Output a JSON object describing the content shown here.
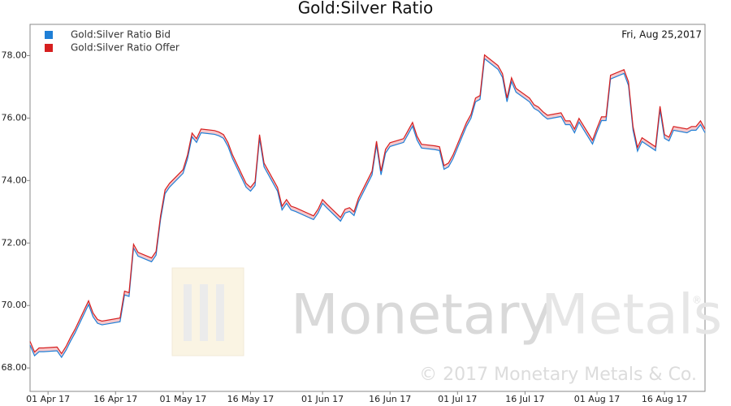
{
  "chart_data": {
    "type": "line",
    "title": "Gold:Silver Ratio",
    "annotation": "Fri, Aug 25,2017",
    "watermark": {
      "brand_1": "Monetary",
      "brand_2": "Metals",
      "registered": "®",
      "copyright": "© 2017 Monetary Metals & Co."
    },
    "x": [
      "2017-03-28",
      "2017-03-29",
      "2017-03-30",
      "2017-03-31",
      "2017-04-03",
      "2017-04-04",
      "2017-04-05",
      "2017-04-06",
      "2017-04-07",
      "2017-04-10",
      "2017-04-11",
      "2017-04-12",
      "2017-04-13",
      "2017-04-17",
      "2017-04-18",
      "2017-04-19",
      "2017-04-20",
      "2017-04-21",
      "2017-04-24",
      "2017-04-25",
      "2017-04-26",
      "2017-04-27",
      "2017-04-28",
      "2017-05-01",
      "2017-05-02",
      "2017-05-03",
      "2017-05-04",
      "2017-05-05",
      "2017-05-08",
      "2017-05-09",
      "2017-05-10",
      "2017-05-11",
      "2017-05-12",
      "2017-05-15",
      "2017-05-16",
      "2017-05-17",
      "2017-05-18",
      "2017-05-19",
      "2017-05-22",
      "2017-05-23",
      "2017-05-24",
      "2017-05-25",
      "2017-05-26",
      "2017-05-30",
      "2017-05-31",
      "2017-06-01",
      "2017-06-02",
      "2017-06-05",
      "2017-06-06",
      "2017-06-07",
      "2017-06-08",
      "2017-06-09",
      "2017-06-12",
      "2017-06-13",
      "2017-06-14",
      "2017-06-15",
      "2017-06-16",
      "2017-06-19",
      "2017-06-20",
      "2017-06-21",
      "2017-06-22",
      "2017-06-23",
      "2017-06-26",
      "2017-06-27",
      "2017-06-28",
      "2017-06-29",
      "2017-06-30",
      "2017-07-03",
      "2017-07-04",
      "2017-07-05",
      "2017-07-06",
      "2017-07-07",
      "2017-07-10",
      "2017-07-11",
      "2017-07-12",
      "2017-07-13",
      "2017-07-14",
      "2017-07-17",
      "2017-07-18",
      "2017-07-19",
      "2017-07-20",
      "2017-07-21",
      "2017-07-24",
      "2017-07-25",
      "2017-07-26",
      "2017-07-27",
      "2017-07-28",
      "2017-07-31",
      "2017-08-01",
      "2017-08-02",
      "2017-08-03",
      "2017-08-04",
      "2017-08-07",
      "2017-08-08",
      "2017-08-09",
      "2017-08-10",
      "2017-08-11",
      "2017-08-14",
      "2017-08-15",
      "2017-08-16",
      "2017-08-17",
      "2017-08-18",
      "2017-08-21",
      "2017-08-22",
      "2017-08-23",
      "2017-08-24",
      "2017-08-25"
    ],
    "series": [
      {
        "name": "Gold:Silver Ratio Bid",
        "color": "#1f7fd6",
        "values": [
          68.73,
          68.39,
          68.52,
          68.52,
          68.55,
          68.34,
          68.57,
          68.86,
          69.12,
          70.03,
          69.64,
          69.43,
          69.38,
          69.48,
          70.34,
          70.29,
          71.84,
          71.58,
          71.4,
          71.61,
          72.75,
          73.58,
          73.79,
          74.23,
          74.7,
          75.4,
          75.22,
          75.53,
          75.48,
          75.43,
          75.35,
          75.09,
          74.7,
          73.79,
          73.66,
          73.84,
          75.35,
          74.44,
          73.66,
          73.06,
          73.27,
          73.06,
          73.01,
          72.75,
          72.96,
          73.27,
          73.12,
          72.7,
          72.96,
          73.01,
          72.88,
          73.32,
          74.18,
          75.14,
          74.18,
          74.88,
          75.09,
          75.22,
          75.48,
          75.74,
          75.3,
          75.04,
          74.99,
          74.96,
          74.36,
          74.44,
          74.7,
          75.74,
          76.0,
          76.52,
          76.6,
          77.9,
          77.56,
          77.3,
          76.52,
          77.17,
          76.83,
          76.52,
          76.31,
          76.23,
          76.08,
          75.97,
          76.05,
          75.79,
          75.79,
          75.53,
          75.87,
          75.17,
          75.56,
          75.92,
          75.92,
          77.25,
          77.43,
          77.04,
          75.61,
          74.94,
          75.25,
          74.96,
          76.26,
          75.35,
          75.27,
          75.61,
          75.53,
          75.61,
          75.61,
          75.79,
          75.53
        ]
      },
      {
        "name": "Gold:Silver Ratio Offer",
        "color": "#d61f1f",
        "values": [
          68.85,
          68.51,
          68.64,
          68.64,
          68.67,
          68.46,
          68.69,
          68.98,
          69.24,
          70.15,
          69.76,
          69.55,
          69.5,
          69.6,
          70.46,
          70.41,
          71.96,
          71.7,
          71.52,
          71.73,
          72.87,
          73.7,
          73.91,
          74.35,
          74.82,
          75.52,
          75.34,
          75.65,
          75.6,
          75.55,
          75.47,
          75.21,
          74.82,
          73.91,
          73.78,
          73.96,
          75.47,
          74.56,
          73.78,
          73.18,
          73.39,
          73.18,
          73.13,
          72.87,
          73.08,
          73.39,
          73.24,
          72.82,
          73.08,
          73.13,
          73.0,
          73.44,
          74.3,
          75.26,
          74.3,
          75.0,
          75.21,
          75.34,
          75.6,
          75.86,
          75.42,
          75.16,
          75.11,
          75.08,
          74.48,
          74.56,
          74.82,
          75.86,
          76.12,
          76.64,
          76.72,
          78.02,
          77.68,
          77.42,
          76.64,
          77.29,
          76.95,
          76.64,
          76.43,
          76.35,
          76.2,
          76.09,
          76.17,
          75.91,
          75.91,
          75.65,
          75.99,
          75.29,
          75.68,
          76.04,
          76.04,
          77.37,
          77.55,
          77.16,
          75.73,
          75.06,
          75.37,
          75.08,
          76.38,
          75.47,
          75.39,
          75.73,
          75.65,
          75.73,
          75.73,
          75.91,
          75.65
        ]
      }
    ],
    "spread_fill": "#f6c9cc",
    "xlim": [
      "2017-03-28",
      "2017-08-25"
    ],
    "xticks": [
      {
        "value": "2017-04-01",
        "label": "01 Apr 17"
      },
      {
        "value": "2017-04-16",
        "label": "16 Apr 17"
      },
      {
        "value": "2017-05-01",
        "label": "01 May 17"
      },
      {
        "value": "2017-05-16",
        "label": "16 May 17"
      },
      {
        "value": "2017-06-01",
        "label": "01 Jun 17"
      },
      {
        "value": "2017-06-16",
        "label": "16 Jun 17"
      },
      {
        "value": "2017-07-01",
        "label": "01 Jul 17"
      },
      {
        "value": "2017-07-16",
        "label": "16 Jul 17"
      },
      {
        "value": "2017-08-01",
        "label": "01 Aug 17"
      },
      {
        "value": "2017-08-16",
        "label": "16 Aug 17"
      }
    ],
    "ylim": [
      67.25,
      79.0
    ],
    "yticks": [
      {
        "value": 68,
        "label": "68.00"
      },
      {
        "value": 70,
        "label": "70.00"
      },
      {
        "value": 72,
        "label": "72.00"
      },
      {
        "value": 74,
        "label": "74.00"
      },
      {
        "value": 76,
        "label": "76.00"
      },
      {
        "value": 78,
        "label": "78.00"
      }
    ],
    "legend": "top-left"
  }
}
